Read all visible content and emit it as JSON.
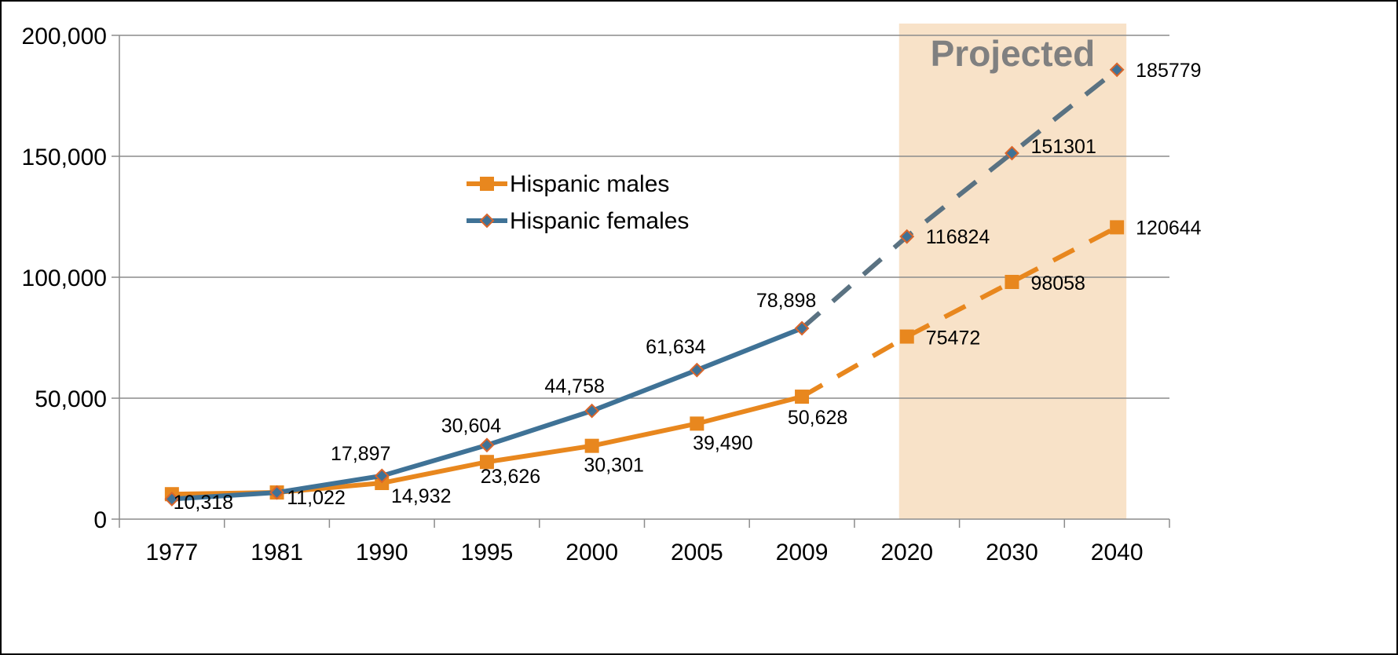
{
  "chart_data": {
    "type": "line",
    "title": "",
    "xlabel": "",
    "ylabel": "",
    "categories": [
      "1977",
      "1981",
      "1990",
      "1995",
      "2000",
      "2005",
      "2009",
      "2020",
      "2030",
      "2040"
    ],
    "ylim": [
      0,
      200000
    ],
    "y_ticks": [
      0,
      50000,
      100000,
      150000,
      200000
    ],
    "y_tick_labels": [
      "0",
      "50,000",
      "100,000",
      "150,000",
      "200,000"
    ],
    "grid": true,
    "projected_region": {
      "label": "Projected",
      "from_category": "2020",
      "to_category": "2040",
      "color": "#F8E2C8"
    },
    "legend": {
      "placement": "upper-center"
    },
    "series": [
      {
        "name": "Hispanic males",
        "color": "#E8871E",
        "marker": "square",
        "values": [
          10318,
          11022,
          14932,
          23626,
          30301,
          39490,
          50628,
          75472,
          98058,
          120644
        ],
        "labels": [
          "10,318",
          "11,022",
          "14,932",
          "23,626",
          "30,301",
          "39,490",
          "50,628",
          "75472",
          "98058",
          "120644"
        ],
        "projected_from_index": 6
      },
      {
        "name": "Hispanic females",
        "color": "#3F7296",
        "projected_color": "#5A7282",
        "marker_color": "#D9652B",
        "marker": "diamond",
        "values": [
          8300,
          11000,
          17897,
          30604,
          44758,
          61634,
          78898,
          116824,
          151301,
          185779
        ],
        "labels": [
          "",
          "",
          "17,897",
          "30,604",
          "44,758",
          "61,634",
          "78,898",
          "116824",
          "151301",
          "185779"
        ],
        "projected_from_index": 6
      }
    ]
  }
}
